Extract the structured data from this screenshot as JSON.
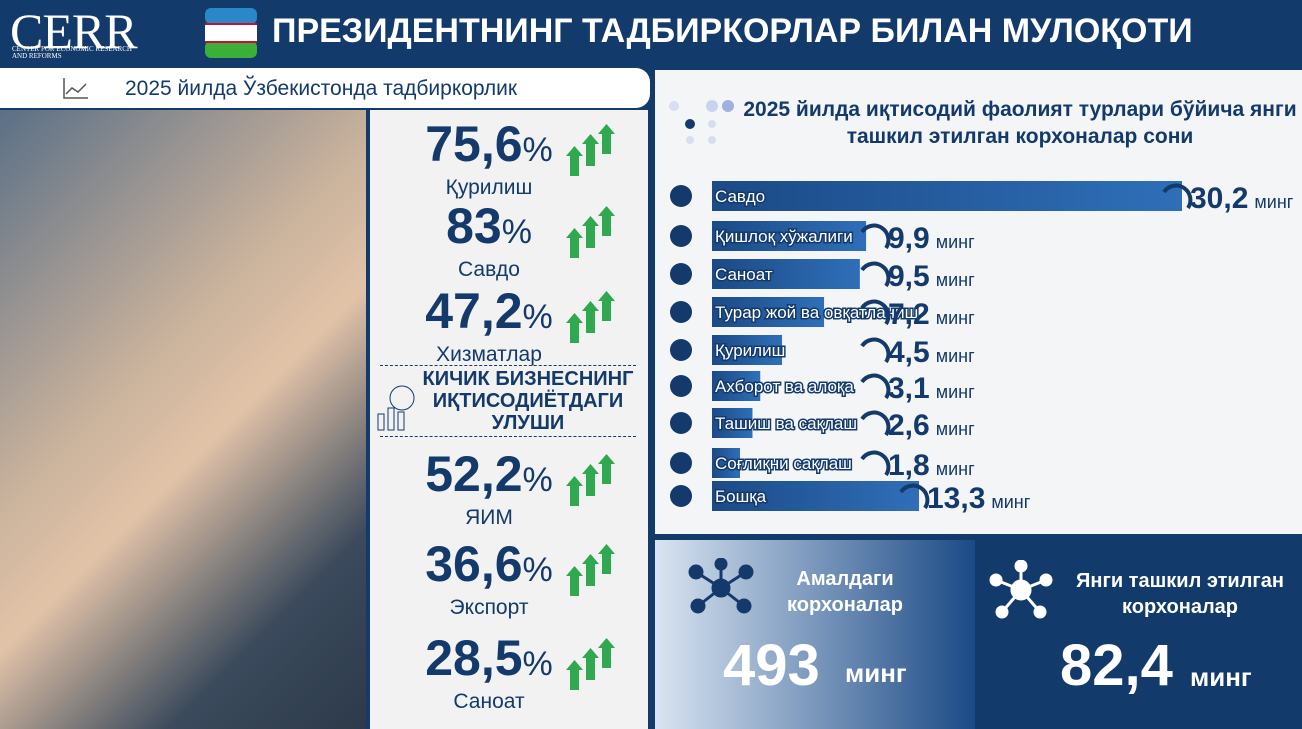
{
  "header": {
    "logo": "CERR",
    "logo_sub": "CENTER FOR ECONOMIC RESEARCH AND REFORMS",
    "title": "ПРЕЗИДЕНТНИНГ ТАДБИРКОРЛАР БИЛАН МУЛОҚОТИ"
  },
  "left": {
    "tab": "2025 йилда Ўзбекистонда тадбиркорлик",
    "growth": [
      {
        "value": "75,6",
        "unit": "%",
        "name": "Қурилиш"
      },
      {
        "value": "83",
        "unit": "%",
        "name": "Савдо"
      },
      {
        "value": "47,2",
        "unit": "%",
        "name": "Хизматлар"
      }
    ],
    "section": "КИЧИК БИЗНЕСНИНГ ИҚТИСОДИЁТДАГИ УЛУШИ",
    "share": [
      {
        "value": "52,2",
        "unit": "%",
        "name": "ЯИМ"
      },
      {
        "value": "36,6",
        "unit": "%",
        "name": "Экспорт"
      },
      {
        "value": "28,5",
        "unit": "%",
        "name": "Саноат"
      }
    ]
  },
  "chart_data": {
    "type": "bar",
    "orientation": "horizontal",
    "title": "2025 йилда иқтисодий фаолият турлари бўйича янги ташкил этилган корхоналар сони",
    "categories": [
      "Савдо",
      "Қишлоқ хўжалиги",
      "Саноат",
      "Турар жой ва овқатланиш",
      "Қурилиш",
      "Ахборот ва алоқа",
      "Ташиш ва сақлаш",
      "Соғлиқни сақлаш",
      "Бошқа"
    ],
    "values": [
      30.2,
      9.9,
      9.5,
      7.2,
      4.5,
      3.1,
      2.6,
      1.8,
      13.3
    ],
    "value_labels": [
      "30,2",
      "9,9",
      "9,5",
      "7,2",
      "4,5",
      "3,1",
      "2,6",
      "1,8",
      "13,3"
    ],
    "unit": "минг",
    "color": "#1b4a86"
  },
  "totals": [
    {
      "name": "Амалдаги корхоналар",
      "value": "493",
      "unit": "минг"
    },
    {
      "name": "Янги ташкил этилган корхоналар",
      "value": "82,4",
      "unit": "минг"
    }
  ]
}
